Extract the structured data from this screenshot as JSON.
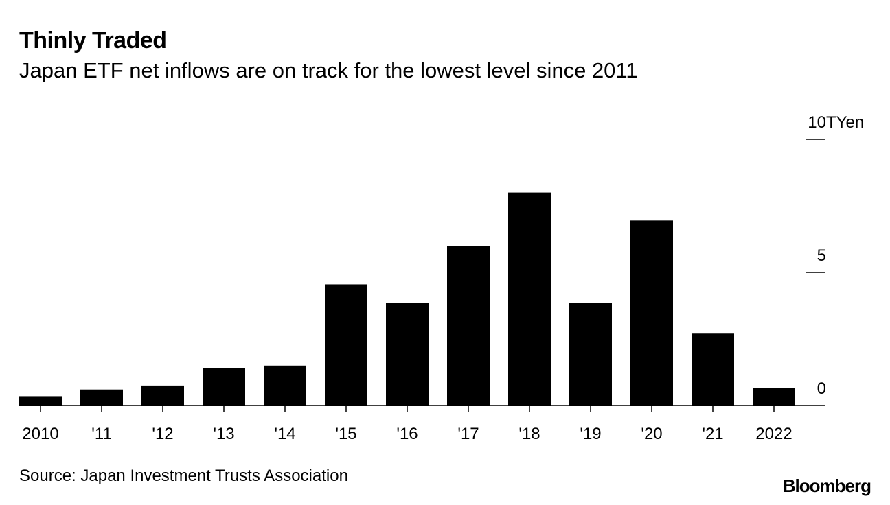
{
  "chart_data": {
    "type": "bar",
    "title": "Thinly Traded",
    "subtitle": "Japan ETF net inflows are on track for the lowest level since 2011",
    "categories": [
      "2010",
      "'11",
      "'12",
      "'13",
      "'14",
      "'15",
      "'16",
      "'17",
      "'18",
      "'19",
      "'20",
      "'21",
      "2022"
    ],
    "values": [
      0.35,
      0.6,
      0.75,
      1.4,
      1.5,
      4.55,
      3.85,
      6.0,
      8.0,
      3.85,
      6.95,
      2.7,
      0.65
    ],
    "ylim": [
      0,
      10
    ],
    "yticks": [
      0,
      5,
      10
    ],
    "ytick_labels": [
      "0",
      "5",
      "10"
    ],
    "yunit": "TYen",
    "xlabel": "",
    "ylabel": "",
    "grid": false,
    "axis_side": "right",
    "bar_color": "#000000"
  },
  "source": "Source: Japan Investment Trusts Association",
  "brand": "Bloomberg"
}
